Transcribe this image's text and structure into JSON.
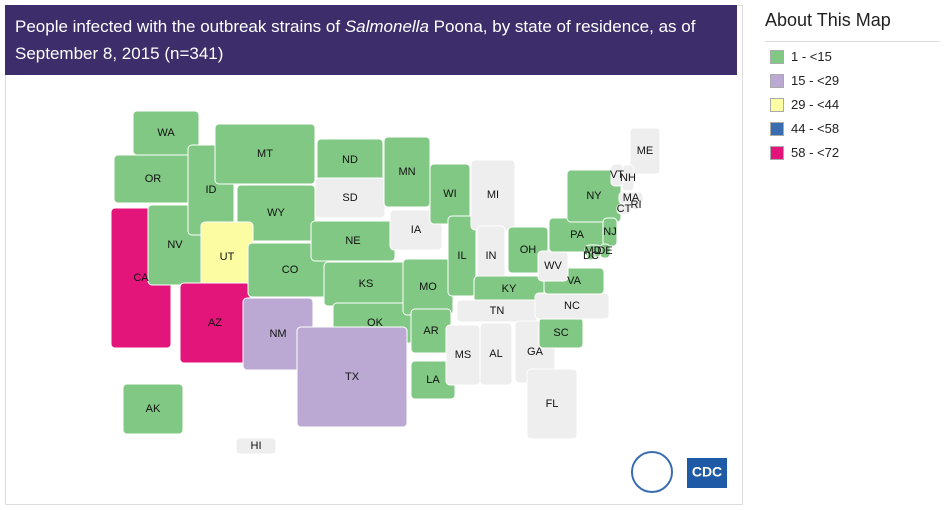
{
  "title": {
    "parts": [
      "People infected with the outbreak strains of ",
      "Salmonella",
      " Poona, by state of residence, as of September 8, 2015 (n=341)"
    ]
  },
  "legend": {
    "title": "About This Map",
    "items": [
      {
        "label": "1 - <15",
        "color": "#80c883"
      },
      {
        "label": "15 - <29",
        "color": "#bba9d3"
      },
      {
        "label": "29 - <44",
        "color": "#fcfca2"
      },
      {
        "label": "44 - <58",
        "color": "#3a6db0"
      },
      {
        "label": "58 - <72",
        "color": "#e3157a"
      }
    ]
  },
  "states": [
    {
      "label": "WA",
      "color": "#80c883"
    },
    {
      "label": "OR",
      "color": "#80c883"
    },
    {
      "label": "CA",
      "color": "#e3157a"
    },
    {
      "label": "NV",
      "color": "#80c883"
    },
    {
      "label": "ID",
      "color": "#80c883"
    },
    {
      "label": "MT",
      "color": "#80c883"
    },
    {
      "label": "WY",
      "color": "#80c883"
    },
    {
      "label": "UT",
      "color": "#fcfca2"
    },
    {
      "label": "AZ",
      "color": "#e3157a"
    },
    {
      "label": "CO",
      "color": "#80c883"
    },
    {
      "label": "NM",
      "color": "#bba9d3"
    },
    {
      "label": "ND",
      "color": "#80c883"
    },
    {
      "label": "SD",
      "color": "#eeeeee"
    },
    {
      "label": "NE",
      "color": "#80c883"
    },
    {
      "label": "KS",
      "color": "#80c883"
    },
    {
      "label": "OK",
      "color": "#80c883"
    },
    {
      "label": "TX",
      "color": "#bba9d3"
    },
    {
      "label": "MN",
      "color": "#80c883"
    },
    {
      "label": "IA",
      "color": "#eeeeee"
    },
    {
      "label": "MO",
      "color": "#80c883"
    },
    {
      "label": "AR",
      "color": "#80c883"
    },
    {
      "label": "LA",
      "color": "#80c883"
    },
    {
      "label": "WI",
      "color": "#80c883"
    },
    {
      "label": "IL",
      "color": "#80c883"
    },
    {
      "label": "MI",
      "color": "#eeeeee"
    },
    {
      "label": "IN",
      "color": "#eeeeee"
    },
    {
      "label": "OH",
      "color": "#80c883"
    },
    {
      "label": "KY",
      "color": "#80c883"
    },
    {
      "label": "TN",
      "color": "#eeeeee"
    },
    {
      "label": "MS",
      "color": "#eeeeee"
    },
    {
      "label": "AL",
      "color": "#eeeeee"
    },
    {
      "label": "GA",
      "color": "#eeeeee"
    },
    {
      "label": "FL",
      "color": "#eeeeee"
    },
    {
      "label": "SC",
      "color": "#80c883"
    },
    {
      "label": "NC",
      "color": "#eeeeee"
    },
    {
      "label": "VA",
      "color": "#80c883"
    },
    {
      "label": "WV",
      "color": "#eeeeee"
    },
    {
      "label": "PA",
      "color": "#80c883"
    },
    {
      "label": "NY",
      "color": "#80c883"
    },
    {
      "label": "NJ",
      "color": "#80c883"
    },
    {
      "label": "DE",
      "color": "#80c883"
    },
    {
      "label": "MD",
      "color": "#80c883"
    },
    {
      "label": "DC",
      "color": "#80c883"
    },
    {
      "label": "ME",
      "color": "#eeeeee"
    },
    {
      "label": "NH",
      "color": "#eeeeee"
    },
    {
      "label": "VT",
      "color": "#eeeeee"
    },
    {
      "label": "MA",
      "color": "#eeeeee"
    },
    {
      "label": "CT",
      "color": "#eeeeee"
    },
    {
      "label": "RI",
      "color": "#eeeeee"
    },
    {
      "label": "AK",
      "color": "#80c883"
    },
    {
      "label": "HI",
      "color": "#eeeeee"
    }
  ],
  "logo": "CDC"
}
